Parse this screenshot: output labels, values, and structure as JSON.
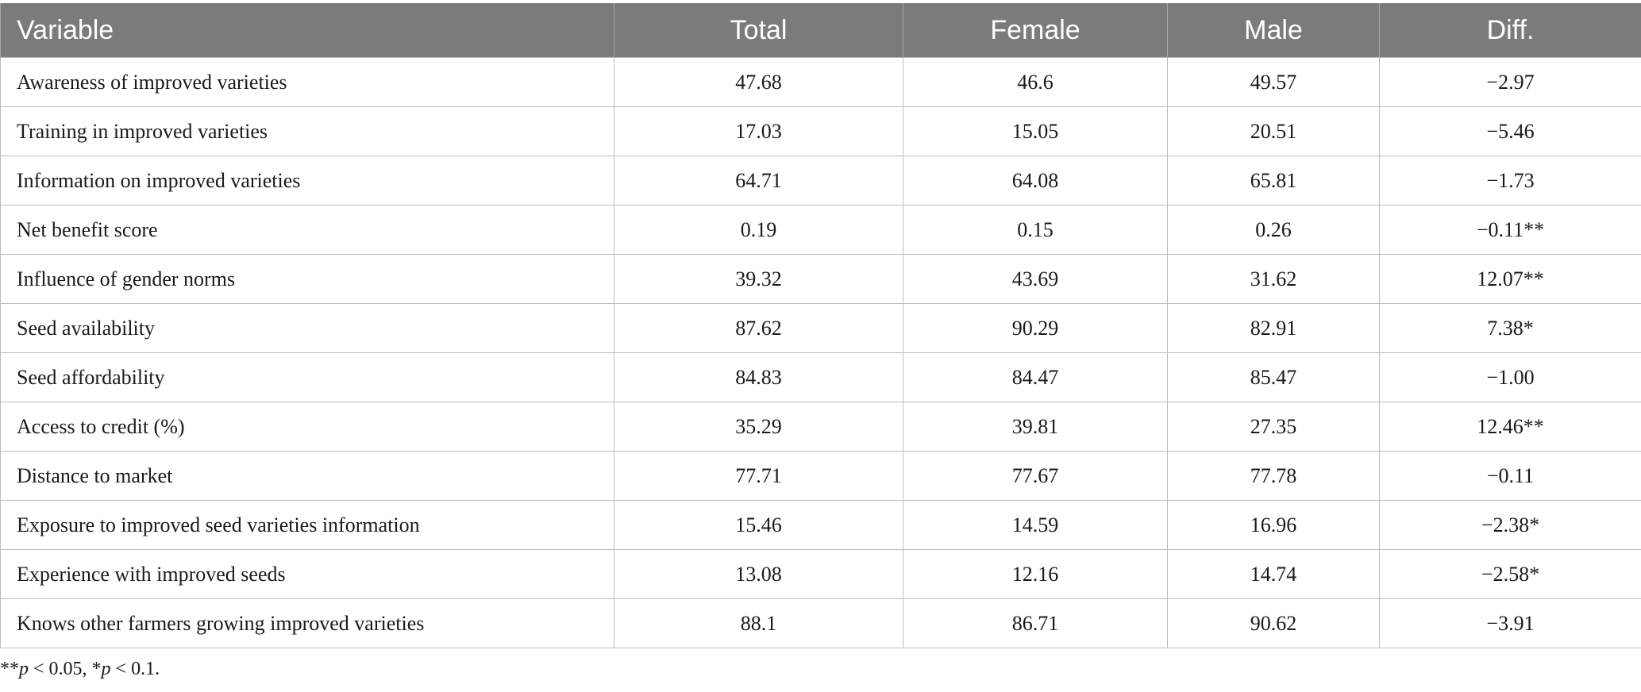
{
  "table": {
    "headers": {
      "variable": "Variable",
      "total": "Total",
      "female": "Female",
      "male": "Male",
      "diff": "Diff."
    },
    "rows": [
      {
        "variable": "Awareness of improved varieties",
        "total": "47.68",
        "female": "46.6",
        "male": "49.57",
        "diff": "−2.97"
      },
      {
        "variable": "Training in improved varieties",
        "total": "17.03",
        "female": "15.05",
        "male": "20.51",
        "diff": "−5.46"
      },
      {
        "variable": "Information on improved varieties",
        "total": "64.71",
        "female": "64.08",
        "male": "65.81",
        "diff": "−1.73"
      },
      {
        "variable": "Net benefit score",
        "total": "0.19",
        "female": "0.15",
        "male": "0.26",
        "diff": "−0.11**"
      },
      {
        "variable": "Influence of gender norms",
        "total": "39.32",
        "female": "43.69",
        "male": "31.62",
        "diff": "12.07**"
      },
      {
        "variable": "Seed availability",
        "total": "87.62",
        "female": "90.29",
        "male": "82.91",
        "diff": "7.38*"
      },
      {
        "variable": "Seed affordability",
        "total": "84.83",
        "female": "84.47",
        "male": "85.47",
        "diff": "−1.00"
      },
      {
        "variable": "Access to credit (%)",
        "total": "35.29",
        "female": "39.81",
        "male": "27.35",
        "diff": "12.46**"
      },
      {
        "variable": "Distance to market",
        "total": "77.71",
        "female": "77.67",
        "male": "77.78",
        "diff": "−0.11"
      },
      {
        "variable": "Exposure to improved seed varieties information",
        "total": "15.46",
        "female": "14.59",
        "male": "16.96",
        "diff": "−2.38*"
      },
      {
        "variable": "Experience with improved seeds",
        "total": "13.08",
        "female": "12.16",
        "male": "14.74",
        "diff": "−2.58*"
      },
      {
        "variable": "Knows other farmers growing improved varieties",
        "total": "88.1",
        "female": "86.71",
        "male": "90.62",
        "diff": "−3.91"
      }
    ]
  },
  "footnote": {
    "stars2": "**",
    "p1": "p",
    "text1": " < 0.05, ",
    "stars1": "*",
    "p2": "p",
    "text2": " < 0.1."
  }
}
